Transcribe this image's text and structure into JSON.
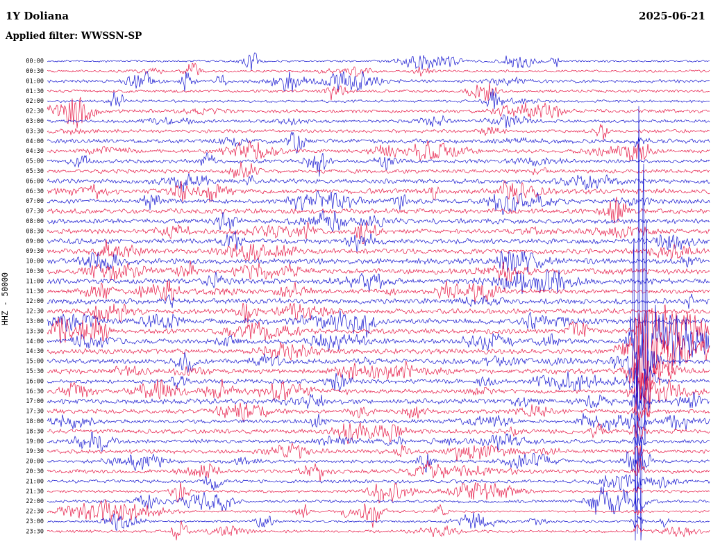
{
  "header": {
    "station_title": "1Y Doliana",
    "filter_label": "Applied filter: WWSSN-SP",
    "date": "2025-06-21"
  },
  "axis": {
    "left_label": "HHZ - 50000"
  },
  "chart_data": {
    "type": "line",
    "subtype": "helicorder_dayplot",
    "title": "1Y Doliana",
    "date": "2025-06-21",
    "filter": "WWSSN-SP",
    "channel": "HHZ",
    "scale_label": "HHZ - 50000",
    "minutes_per_row": 30,
    "row_labels": [
      "00:00",
      "00:30",
      "01:00",
      "01:30",
      "02:00",
      "02:30",
      "03:00",
      "03:30",
      "04:00",
      "04:30",
      "05:00",
      "05:30",
      "06:00",
      "06:30",
      "07:00",
      "07:30",
      "08:00",
      "08:30",
      "09:00",
      "09:30",
      "10:00",
      "10:30",
      "11:00",
      "11:30",
      "12:00",
      "12:30",
      "13:00",
      "13:30",
      "14:00",
      "14:30",
      "15:00",
      "15:30",
      "16:00",
      "16:30",
      "17:00",
      "17:30",
      "18:00",
      "18:30",
      "19:00",
      "19:30",
      "20:00",
      "20:30",
      "21:00",
      "21:30",
      "22:00",
      "22:30",
      "23:00",
      "23:30"
    ],
    "trace_colors": [
      "#1111cf",
      "#e51442"
    ],
    "text_color": "#000000",
    "background_color": "#ffffff",
    "grid": false,
    "noise": {
      "base_amplitude": 1.0,
      "mid_day_boost": 1.6
    },
    "main_event_note": "Large clipped earthquake arrival near 89% across the 13:30/14:00 rows producing a full-height vertical streak, with a decaying red coda triangle and persistent narrow bursts at the same horizontal position in all later rows",
    "events": [
      {
        "row": 27,
        "row_label": "13:30",
        "shape": "burst",
        "f": 0.905,
        "w": 0.01,
        "amp": 20
      },
      {
        "row": 27,
        "row_label": "13:30",
        "shape": "coda",
        "f": 0.9,
        "decay": 0.08,
        "amp": 45
      },
      {
        "row": 27,
        "row_label": "13:30",
        "shape": "burst",
        "f": 0.018,
        "w": 0.004,
        "amp": 16
      },
      {
        "row": 28,
        "row_label": "14:00",
        "shape": "burst",
        "f": 0.893,
        "w": 0.007,
        "amp": 500
      },
      {
        "row": 28,
        "row_label": "14:00",
        "shape": "coda",
        "f": 0.9,
        "decay": 0.09,
        "amp": 55
      },
      {
        "row": 29,
        "row_label": "14:30",
        "shape": "burst",
        "f": 0.9,
        "w": 0.018,
        "amp": 55
      },
      {
        "row": 29,
        "row_label": "14:30",
        "shape": "coda",
        "f": 0.9,
        "decay": 0.15,
        "amp": 22
      },
      {
        "row": 30,
        "row_label": "15:00",
        "shape": "burst",
        "f": 0.896,
        "w": 0.014,
        "amp": 42
      },
      {
        "row": 30,
        "row_label": "15:00",
        "shape": "burst",
        "f": 0.21,
        "w": 0.01,
        "amp": 12
      },
      {
        "row": 31,
        "row_label": "15:30",
        "shape": "burst",
        "f": 0.897,
        "w": 0.012,
        "amp": 34
      },
      {
        "row": 32,
        "row_label": "16:00",
        "shape": "burst",
        "f": 0.899,
        "w": 0.012,
        "amp": 27
      },
      {
        "row": 32,
        "row_label": "16:00",
        "shape": "burst",
        "f": 0.44,
        "w": 0.01,
        "amp": 12
      },
      {
        "row": 33,
        "row_label": "16:30",
        "shape": "burst",
        "f": 0.895,
        "w": 0.01,
        "amp": 22
      },
      {
        "row": 34,
        "row_label": "17:00",
        "shape": "burst",
        "f": 0.893,
        "w": 0.007,
        "amp": 18
      },
      {
        "row": 35,
        "row_label": "17:30",
        "shape": "burst",
        "f": 0.893,
        "w": 0.006,
        "amp": 15
      },
      {
        "row": 36,
        "row_label": "18:00",
        "shape": "burst",
        "f": 0.893,
        "w": 0.006,
        "amp": 14
      },
      {
        "row": 36,
        "row_label": "18:00",
        "shape": "burst",
        "f": 0.41,
        "w": 0.008,
        "amp": 10
      },
      {
        "row": 37,
        "row_label": "18:30",
        "shape": "burst",
        "f": 0.893,
        "w": 0.006,
        "amp": 13
      },
      {
        "row": 37,
        "row_label": "18:30",
        "shape": "burst",
        "f": 0.83,
        "w": 0.007,
        "amp": 10
      },
      {
        "row": 38,
        "row_label": "19:00",
        "shape": "burst",
        "f": 0.893,
        "w": 0.005,
        "amp": 12
      },
      {
        "row": 39,
        "row_label": "19:30",
        "shape": "burst",
        "f": 0.893,
        "w": 0.005,
        "amp": 12
      },
      {
        "row": 40,
        "row_label": "20:00",
        "shape": "burst",
        "f": 0.892,
        "w": 0.011,
        "amp": 26
      },
      {
        "row": 40,
        "row_label": "20:00",
        "shape": "burst",
        "f": 0.57,
        "w": 0.008,
        "amp": 10
      },
      {
        "row": 41,
        "row_label": "20:30",
        "shape": "burst",
        "f": 0.893,
        "w": 0.005,
        "amp": 11
      },
      {
        "row": 42,
        "row_label": "21:00",
        "shape": "burst",
        "f": 0.893,
        "w": 0.005,
        "amp": 11
      },
      {
        "row": 42,
        "row_label": "21:00",
        "shape": "burst",
        "f": 0.25,
        "w": 0.009,
        "amp": 12
      },
      {
        "row": 43,
        "row_label": "21:30",
        "shape": "burst",
        "f": 0.893,
        "w": 0.005,
        "amp": 10
      },
      {
        "row": 43,
        "row_label": "21:30",
        "shape": "burst",
        "f": 0.2,
        "w": 0.009,
        "amp": 14
      },
      {
        "row": 44,
        "row_label": "22:00",
        "shape": "burst",
        "f": 0.893,
        "w": 0.005,
        "amp": 12
      },
      {
        "row": 45,
        "row_label": "22:30",
        "shape": "burst",
        "f": 0.893,
        "w": 0.004,
        "amp": 9
      },
      {
        "row": 45,
        "row_label": "22:30",
        "shape": "burst",
        "f": 0.49,
        "w": 0.009,
        "amp": 14
      },
      {
        "row": 46,
        "row_label": "23:00",
        "shape": "burst",
        "f": 0.893,
        "w": 0.005,
        "amp": 14
      },
      {
        "row": 46,
        "row_label": "23:00",
        "shape": "burst",
        "f": 0.33,
        "w": 0.009,
        "amp": 12
      },
      {
        "row": 47,
        "row_label": "23:30",
        "shape": "burst",
        "f": 0.893,
        "w": 0.004,
        "amp": 8
      },
      {
        "row": 47,
        "row_label": "23:30",
        "shape": "burst",
        "f": 0.2,
        "w": 0.008,
        "amp": 12
      },
      {
        "row": 1,
        "row_label": "00:30",
        "shape": "burst",
        "f": 0.22,
        "w": 0.008,
        "amp": 10
      },
      {
        "row": 1,
        "row_label": "00:30",
        "shape": "burst",
        "f": 0.57,
        "w": 0.008,
        "amp": 8
      },
      {
        "row": 2,
        "row_label": "01:00",
        "shape": "burst",
        "f": 0.21,
        "w": 0.007,
        "amp": 10
      },
      {
        "row": 2,
        "row_label": "01:00",
        "shape": "burst",
        "f": 0.155,
        "w": 0.006,
        "amp": 8
      },
      {
        "row": 4,
        "row_label": "02:00",
        "shape": "burst",
        "f": 0.105,
        "w": 0.007,
        "amp": 12
      },
      {
        "row": 8,
        "row_label": "04:00",
        "shape": "burst",
        "f": 0.375,
        "w": 0.009,
        "amp": 14
      },
      {
        "row": 10,
        "row_label": "05:00",
        "shape": "burst",
        "f": 0.406,
        "w": 0.01,
        "amp": 16
      },
      {
        "row": 13,
        "row_label": "06:30",
        "shape": "burst",
        "f": 0.2,
        "w": 0.009,
        "amp": 12
      },
      {
        "row": 14,
        "row_label": "07:00",
        "shape": "burst",
        "f": 0.157,
        "w": 0.008,
        "amp": 12
      },
      {
        "row": 16,
        "row_label": "08:00",
        "shape": "burst",
        "f": 0.27,
        "w": 0.009,
        "amp": 12
      },
      {
        "row": 17,
        "row_label": "08:30",
        "shape": "burst",
        "f": 0.48,
        "w": 0.01,
        "amp": 14
      },
      {
        "row": 18,
        "row_label": "09:00",
        "shape": "burst",
        "f": 0.28,
        "w": 0.009,
        "amp": 12
      },
      {
        "row": 21,
        "row_label": "10:30",
        "shape": "burst",
        "f": 0.21,
        "w": 0.009,
        "amp": 14
      },
      {
        "row": 22,
        "row_label": "11:00",
        "shape": "burst",
        "f": 0.255,
        "w": 0.008,
        "amp": 10
      },
      {
        "row": 23,
        "row_label": "11:30",
        "shape": "burst",
        "f": 0.185,
        "w": 0.008,
        "amp": 14
      },
      {
        "row": 25,
        "row_label": "12:30",
        "shape": "burst",
        "f": 0.3,
        "w": 0.009,
        "amp": 12
      },
      {
        "row": 26,
        "row_label": "13:00",
        "shape": "burst",
        "f": 0.48,
        "w": 0.009,
        "amp": 14
      }
    ]
  }
}
